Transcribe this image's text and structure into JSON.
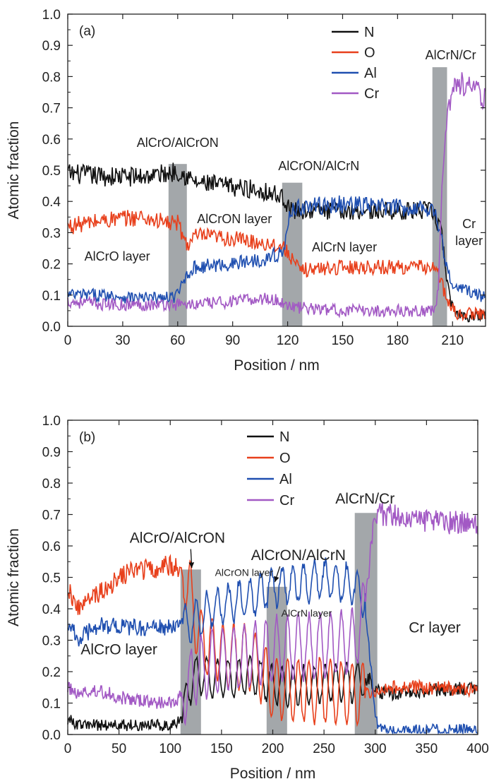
{
  "chart_data": [
    {
      "id": "a",
      "type": "line",
      "panel_label": "(a)",
      "xlabel": "Position / nm",
      "ylabel": "Atomic fraction",
      "xlim": [
        0,
        228
      ],
      "ylim": [
        0,
        1.0
      ],
      "xticks": [
        0,
        30,
        60,
        90,
        120,
        150,
        180,
        210
      ],
      "xtick_labels": [
        "0",
        "30",
        "60",
        "90",
        "120",
        "150",
        "180",
        "210"
      ],
      "yticks": [
        0.0,
        0.1,
        0.2,
        0.3,
        0.4,
        0.5,
        0.6,
        0.7,
        0.8,
        0.9,
        1.0
      ],
      "ytick_labels": [
        "0.0",
        "0.1",
        "0.2",
        "0.3",
        "0.4",
        "0.5",
        "0.6",
        "0.7",
        "0.8",
        "0.9",
        "1.0"
      ],
      "grid": false,
      "legend_position": "top-right",
      "series": [
        {
          "name": "N",
          "color": "#111111",
          "x": [
            0,
            20,
            40,
            55,
            60,
            70,
            85,
            100,
            110,
            118,
            122,
            150,
            180,
            199,
            204,
            208,
            212,
            220,
            228
          ],
          "y": [
            0.49,
            0.48,
            0.48,
            0.49,
            0.5,
            0.46,
            0.45,
            0.44,
            0.43,
            0.41,
            0.37,
            0.37,
            0.37,
            0.37,
            0.3,
            0.1,
            0.04,
            0.03,
            0.04
          ]
        },
        {
          "name": "O",
          "color": "#e8401c",
          "x": [
            0,
            20,
            40,
            55,
            60,
            65,
            70,
            90,
            115,
            120,
            126,
            150,
            180,
            199,
            203,
            207,
            212,
            228
          ],
          "y": [
            0.32,
            0.34,
            0.35,
            0.33,
            0.33,
            0.26,
            0.29,
            0.28,
            0.26,
            0.24,
            0.18,
            0.19,
            0.19,
            0.19,
            0.16,
            0.08,
            0.04,
            0.04
          ]
        },
        {
          "name": "Al",
          "color": "#1f4fb0",
          "x": [
            0,
            20,
            40,
            55,
            60,
            65,
            70,
            90,
            110,
            118,
            122,
            150,
            180,
            199,
            203,
            206,
            210,
            220,
            228
          ],
          "y": [
            0.1,
            0.1,
            0.09,
            0.09,
            0.1,
            0.17,
            0.19,
            0.2,
            0.22,
            0.24,
            0.38,
            0.39,
            0.38,
            0.38,
            0.32,
            0.2,
            0.13,
            0.11,
            0.09
          ]
        },
        {
          "name": "Cr",
          "color": "#a259c4",
          "x": [
            0,
            20,
            40,
            60,
            70,
            90,
            110,
            120,
            125,
            150,
            180,
            199,
            202,
            204,
            206,
            209,
            212,
            220,
            228
          ],
          "y": [
            0.08,
            0.07,
            0.07,
            0.07,
            0.07,
            0.08,
            0.09,
            0.07,
            0.06,
            0.05,
            0.05,
            0.05,
            0.1,
            0.4,
            0.62,
            0.74,
            0.78,
            0.77,
            0.72
          ]
        }
      ],
      "shaded_regions": [
        {
          "x0": 55,
          "x1": 65,
          "y_top": 0.52
        },
        {
          "x0": 117,
          "x1": 128,
          "y_top": 0.46
        },
        {
          "x0": 199,
          "x1": 207,
          "y_top": 0.83
        }
      ],
      "annotations": [
        {
          "text": "AlCrO/AlCrON",
          "x": 60,
          "y": 0.575
        },
        {
          "text": "AlCrON/AlCrN",
          "x": 137,
          "y": 0.5
        },
        {
          "text": "AlCrN/Cr",
          "x": 209,
          "y": 0.855
        },
        {
          "text": "AlCrON layer",
          "x": 91,
          "y": 0.33
        },
        {
          "text": "AlCrO layer",
          "x": 27,
          "y": 0.21
        },
        {
          "text": "AlCrN layer",
          "x": 151,
          "y": 0.24
        },
        {
          "text": "Cr",
          "x": 219,
          "y": 0.315
        },
        {
          "text": "layer",
          "x": 219,
          "y": 0.26
        }
      ]
    },
    {
      "id": "b",
      "type": "line",
      "panel_label": "(b)",
      "xlabel": "Position / nm",
      "ylabel": "Atomic fraction",
      "xlim": [
        0,
        400
      ],
      "ylim": [
        0,
        1.0
      ],
      "xticks": [
        0,
        50,
        100,
        150,
        200,
        250,
        300,
        350,
        400
      ],
      "xtick_labels": [
        "0",
        "50",
        "100",
        "150",
        "200",
        "250",
        "300",
        "350",
        "400"
      ],
      "yticks": [
        0.0,
        0.1,
        0.2,
        0.3,
        0.4,
        0.5,
        0.6,
        0.7,
        0.8,
        0.9,
        1.0
      ],
      "ytick_labels": [
        "0.0",
        "0.1",
        "0.2",
        "0.3",
        "0.4",
        "0.5",
        "0.6",
        "0.7",
        "0.8",
        "0.9",
        "1.0"
      ],
      "grid": false,
      "legend_position": "top-center",
      "series": [
        {
          "name": "N",
          "color": "#111111",
          "x": [
            0,
            10,
            30,
            60,
            100,
            112,
            118,
            125,
            140,
            160,
            180,
            200,
            220,
            250,
            280,
            295,
            300,
            310,
            350,
            400
          ],
          "y": [
            0.05,
            0.03,
            0.03,
            0.03,
            0.03,
            0.05,
            0.15,
            0.19,
            0.18,
            0.18,
            0.19,
            0.16,
            0.15,
            0.16,
            0.17,
            0.18,
            0.14,
            0.13,
            0.14,
            0.15
          ]
        },
        {
          "name": "O",
          "color": "#e8401c",
          "x": [
            0,
            10,
            30,
            60,
            90,
            100,
            110,
            118,
            122,
            130,
            150,
            180,
            200,
            220,
            250,
            280,
            300,
            310,
            350,
            400
          ],
          "y": [
            0.47,
            0.4,
            0.45,
            0.52,
            0.53,
            0.54,
            0.52,
            0.48,
            0.4,
            0.3,
            0.26,
            0.24,
            0.15,
            0.14,
            0.14,
            0.13,
            0.14,
            0.15,
            0.15,
            0.14
          ]
        },
        {
          "name": "Al",
          "color": "#1f4fb0",
          "x": [
            0,
            10,
            30,
            60,
            100,
            115,
            125,
            140,
            160,
            180,
            200,
            220,
            240,
            260,
            280,
            290,
            296,
            300,
            305,
            320,
            400
          ],
          "y": [
            0.36,
            0.3,
            0.35,
            0.34,
            0.34,
            0.35,
            0.36,
            0.4,
            0.42,
            0.44,
            0.47,
            0.48,
            0.49,
            0.49,
            0.47,
            0.42,
            0.2,
            0.05,
            0.02,
            0.015,
            0.015
          ]
        },
        {
          "name": "Cr",
          "color": "#a259c4",
          "x": [
            0,
            10,
            30,
            60,
            90,
            100,
            110,
            118,
            125,
            140,
            160,
            180,
            200,
            220,
            250,
            280,
            290,
            296,
            300,
            310,
            350,
            400
          ],
          "y": [
            0.15,
            0.13,
            0.14,
            0.11,
            0.1,
            0.1,
            0.12,
            0.16,
            0.2,
            0.23,
            0.24,
            0.25,
            0.27,
            0.28,
            0.28,
            0.3,
            0.4,
            0.6,
            0.7,
            0.7,
            0.68,
            0.67
          ]
        }
      ],
      "shaded_regions": [
        {
          "x0": 110,
          "x1": 130,
          "y_top": 0.525
        },
        {
          "x0": 194,
          "x1": 214,
          "y_top": 0.47
        },
        {
          "x0": 280,
          "x1": 302,
          "y_top": 0.705
        }
      ],
      "annotations": [
        {
          "text": "AlCrO/AlCrON",
          "x": 107,
          "y": 0.61
        },
        {
          "text": "AlCrON/AlCrN",
          "x": 225,
          "y": 0.555
        },
        {
          "text": "AlCrN/Cr",
          "x": 290,
          "y": 0.735
        },
        {
          "text": "AlCrON layer",
          "x": 172,
          "y": 0.505
        },
        {
          "text": "AlCrN layer",
          "x": 233,
          "y": 0.375
        },
        {
          "text": "AlCrO layer",
          "x": 50,
          "y": 0.255
        },
        {
          "text": "Cr layer",
          "x": 358,
          "y": 0.325
        }
      ],
      "arrows": [
        {
          "from": [
            120,
            0.59
          ],
          "to": [
            121,
            0.53
          ]
        },
        {
          "from": [
            207,
            0.535
          ],
          "to": [
            202,
            0.485
          ]
        }
      ]
    }
  ]
}
